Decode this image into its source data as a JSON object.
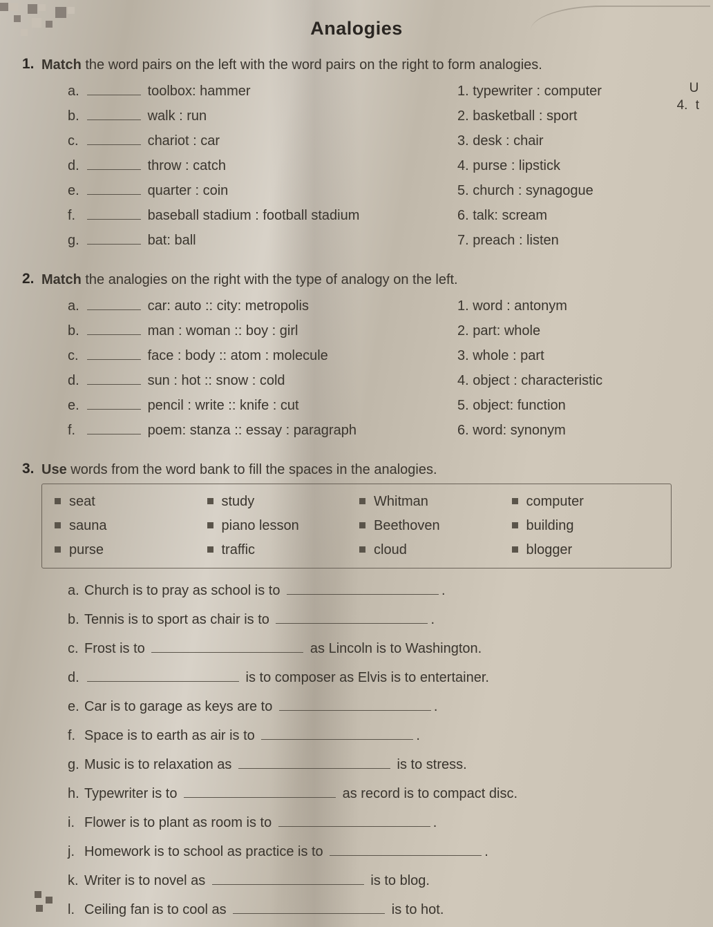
{
  "title": "Analogies",
  "edge_note": {
    "top": "U",
    "mid": "4.",
    "bot": "t"
  },
  "q1": {
    "prompt_bold": "Match",
    "prompt_rest": " the word pairs on the left with the word pairs on the right to form analogies.",
    "left": [
      {
        "l": "a.",
        "t": "toolbox: hammer"
      },
      {
        "l": "b.",
        "t": "walk : run"
      },
      {
        "l": "c.",
        "t": "chariot : car"
      },
      {
        "l": "d.",
        "t": "throw : catch"
      },
      {
        "l": "e.",
        "t": "quarter : coin"
      },
      {
        "l": "f.",
        "t": "baseball stadium : football stadium"
      },
      {
        "l": "g.",
        "t": "bat: ball"
      }
    ],
    "right": [
      "1. typewriter : computer",
      "2. basketball : sport",
      "3. desk : chair",
      "4. purse : lipstick",
      "5. church : synagogue",
      "6. talk: scream",
      "7. preach : listen"
    ]
  },
  "q2": {
    "prompt_bold": "Match",
    "prompt_rest": " the analogies on the right with the type of analogy on the left.",
    "left": [
      {
        "l": "a.",
        "t": "car: auto :: city: metropolis"
      },
      {
        "l": "b.",
        "t": "man : woman ::  boy : girl"
      },
      {
        "l": "c.",
        "t": "face : body :: atom : molecule"
      },
      {
        "l": "d.",
        "t": "sun : hot :: snow : cold"
      },
      {
        "l": "e.",
        "t": "pencil : write :: knife : cut"
      },
      {
        "l": "f.",
        "t": "poem: stanza :: essay : paragraph"
      }
    ],
    "right": [
      "1. word : antonym",
      "2. part: whole",
      "3. whole : part",
      "4. object : characteristic",
      "5. object: function",
      "6. word: synonym"
    ]
  },
  "q3": {
    "prompt_bold": "Use",
    "prompt_rest": " words from the word bank to fill the spaces in the analogies.",
    "bank": [
      "seat",
      "study",
      "Whitman",
      "computer",
      "sauna",
      "piano lesson",
      "Beethoven",
      "building",
      "purse",
      "traffic",
      "cloud",
      "blogger"
    ],
    "items": [
      {
        "l": "a.",
        "pre": "Church is to pray as school is to ",
        "mid": "",
        "post": "."
      },
      {
        "l": "b.",
        "pre": "Tennis is to sport as chair is to ",
        "mid": "",
        "post": "."
      },
      {
        "l": "c.",
        "pre": "Frost is to ",
        "mid": "",
        "post": " as Lincoln is to Washington."
      },
      {
        "l": "d.",
        "pre": "",
        "mid": "",
        "post": " is to composer as Elvis is to entertainer."
      },
      {
        "l": "e.",
        "pre": "Car is to garage as keys are to ",
        "mid": "",
        "post": "."
      },
      {
        "l": "f.",
        "pre": "Space is to earth as air is to ",
        "mid": "",
        "post": "."
      },
      {
        "l": "g.",
        "pre": "Music is to relaxation as ",
        "mid": "",
        "post": " is to stress."
      },
      {
        "l": "h.",
        "pre": "Typewriter is to ",
        "mid": "",
        "post": " as record is to compact disc."
      },
      {
        "l": "i.",
        "pre": "Flower is to plant as room is to ",
        "mid": "",
        "post": "."
      },
      {
        "l": "j.",
        "pre": "Homework is to school as practice is to ",
        "mid": "",
        "post": "."
      },
      {
        "l": "k.",
        "pre": "Writer is to novel as ",
        "mid": "",
        "post": " is to blog."
      },
      {
        "l": "l.",
        "pre": "Ceiling fan is to cool as ",
        "mid": "",
        "post": " is to hot."
      }
    ]
  }
}
